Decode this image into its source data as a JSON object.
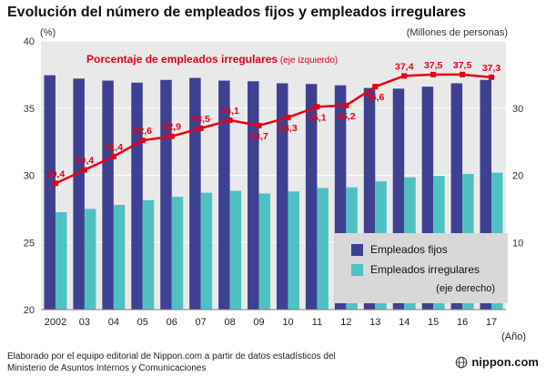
{
  "title": "Evolución del número de empleados fijos y empleados irregulares",
  "axes": {
    "left_unit": "(%)",
    "right_unit": "(Millones de personas)",
    "left_ticks": [
      "40",
      "35",
      "30",
      "25",
      "20"
    ],
    "right_ticks": [
      "30",
      "20",
      "10"
    ],
    "x_label": "(Año)"
  },
  "line_label": {
    "main": "Porcentaje de empleados irregulares",
    "suffix": " (eje izquierdo)"
  },
  "legend": {
    "fijos": "Empleados fijos",
    "irregulares": "Empleados irregulares",
    "note": "(eje derecho)"
  },
  "footer": {
    "line1": "Elaborado por el equipo editorial de Nippon.com a partir de datos estadísticos del",
    "line2": "Ministerio de Asuntos Internos y Comunicaciones",
    "logo": "nippon.com"
  },
  "colors": {
    "fijos": "#3e4191",
    "irregulares": "#4fc1c3",
    "line": "#e60012",
    "plot_bg": "#e9e9e9",
    "legend_bg": "#d8d8d8",
    "grid": "#ffffff",
    "axis_line": "#808080"
  },
  "chart_data": {
    "type": "bar",
    "categories": [
      "2002",
      "03",
      "04",
      "05",
      "06",
      "07",
      "08",
      "09",
      "10",
      "11",
      "12",
      "13",
      "14",
      "15",
      "16",
      "17"
    ],
    "title": "Evolución del número de empleados fijos y empleados irregulares",
    "left_axis": {
      "label": "(%)",
      "min": 20,
      "max": 40
    },
    "right_axis": {
      "label": "(Millones de personas)",
      "min": 0,
      "max": 40
    },
    "grid": true,
    "legend_position": "bottom-right",
    "series": [
      {
        "name": "Empleados fijos",
        "type": "bar",
        "axis": "right",
        "values": [
          34.9,
          34.4,
          34.1,
          33.8,
          34.2,
          34.5,
          34.1,
          34.0,
          33.7,
          33.6,
          33.4,
          33.0,
          32.9,
          33.2,
          33.7,
          34.2
        ]
      },
      {
        "name": "Empleados irregulares",
        "type": "bar",
        "axis": "right",
        "values": [
          14.5,
          15.0,
          15.6,
          16.3,
          16.8,
          17.4,
          17.7,
          17.3,
          17.6,
          18.1,
          18.2,
          19.1,
          19.7,
          19.9,
          20.2,
          20.4
        ]
      },
      {
        "name": "Porcentaje de empleados irregulares",
        "type": "line",
        "axis": "left",
        "values": [
          29.4,
          30.4,
          31.4,
          32.6,
          32.9,
          33.5,
          34.1,
          33.7,
          34.3,
          35.1,
          35.2,
          36.6,
          37.4,
          37.5,
          37.5,
          37.3
        ],
        "labels": [
          "29,4",
          "30,4",
          "31,4",
          "32,6",
          "32,9",
          "33,5",
          "34,1",
          "33,7",
          "34,3",
          "35,1",
          "35,2",
          "36,6",
          "37,4",
          "37,5",
          "37,5",
          "37,3"
        ],
        "label_positions": [
          "above",
          "above",
          "above",
          "above",
          "above",
          "above",
          "above",
          "below",
          "below",
          "below",
          "below",
          "below",
          "above",
          "above",
          "above",
          "above"
        ]
      }
    ]
  }
}
